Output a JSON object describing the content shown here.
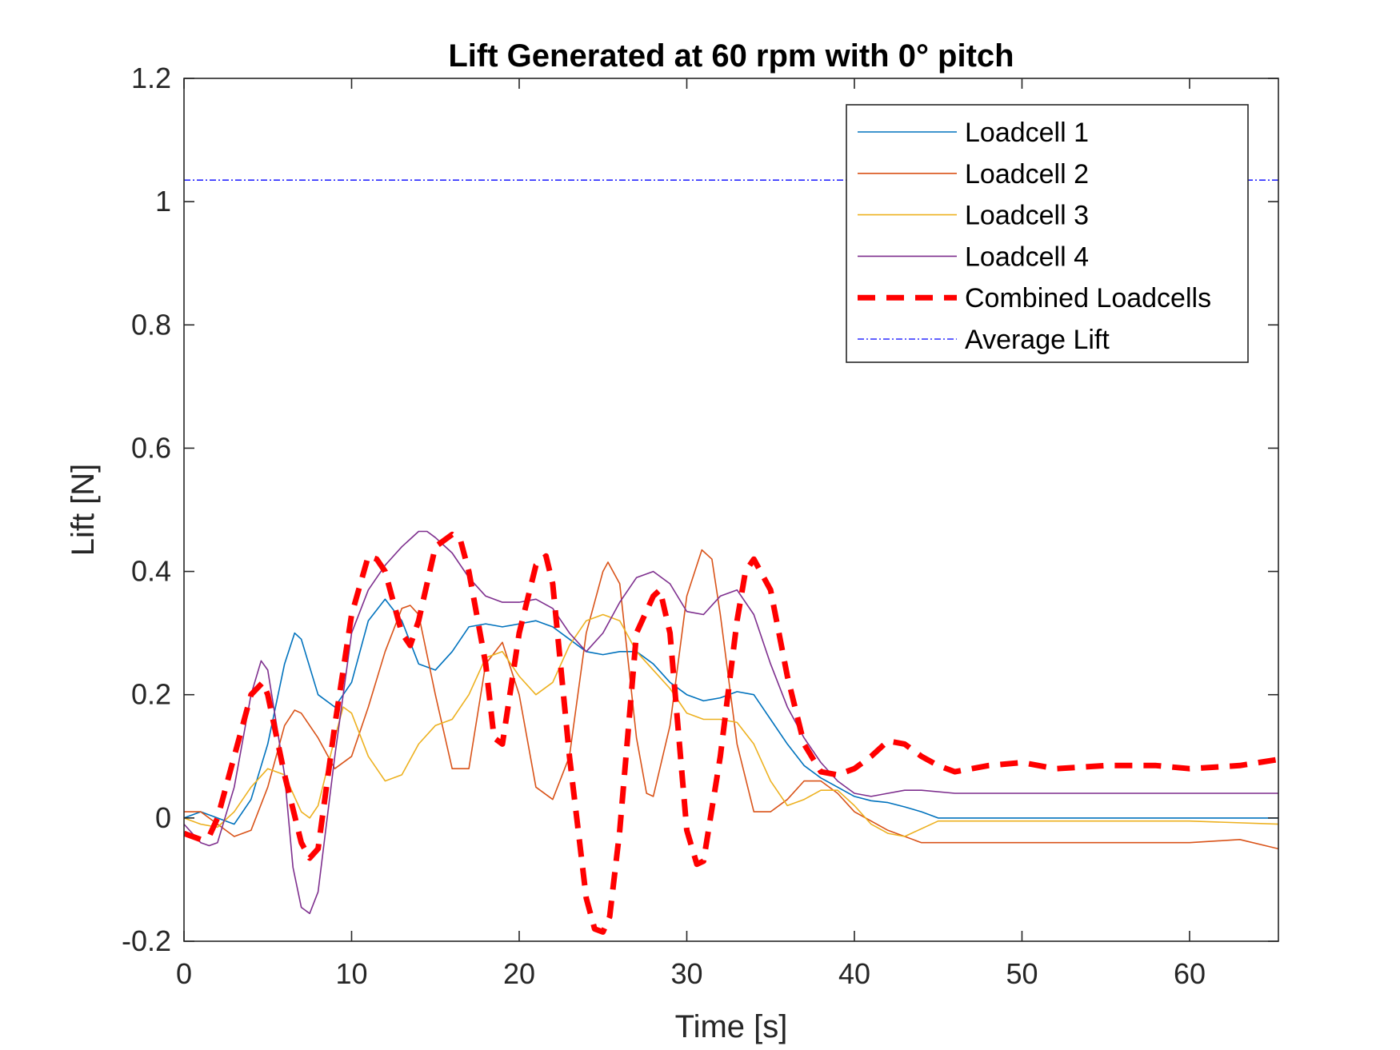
{
  "chart_data": {
    "type": "line",
    "title": "Lift Generated at 60 rpm with 0° pitch",
    "xlabel": "Time [s]",
    "ylabel": "Lift [N]",
    "xlim": [
      0,
      65.3
    ],
    "ylim": [
      -0.2,
      1.2
    ],
    "xticks": [
      0,
      10,
      20,
      30,
      40,
      50,
      60
    ],
    "xtick_labels": [
      "0",
      "10",
      "20",
      "30",
      "40",
      "50",
      "60"
    ],
    "yticks": [
      -0.2,
      0,
      0.2,
      0.4,
      0.6,
      0.8,
      1,
      1.2
    ],
    "ytick_labels": [
      "-0.2",
      "0",
      "0.2",
      "0.4",
      "0.6",
      "0.8",
      "1",
      "1.2"
    ],
    "grid": false,
    "legend_position": "top-right",
    "series": [
      {
        "name": "Loadcell 1",
        "color": "#0072BD",
        "style": "solid",
        "x": [
          0,
          1,
          2,
          3,
          4,
          5,
          6,
          6.6,
          7,
          8,
          9,
          10,
          11,
          12,
          13,
          14,
          15,
          16,
          17,
          18,
          19,
          20,
          21,
          22,
          23,
          24,
          25,
          26,
          27,
          28,
          29,
          30,
          31,
          32,
          33,
          34,
          35,
          36,
          37,
          38,
          39,
          40,
          41,
          42,
          43,
          44,
          45,
          47,
          50,
          55,
          60,
          65.3
        ],
        "y": [
          0.0,
          0.01,
          0.0,
          -0.01,
          0.03,
          0.12,
          0.25,
          0.3,
          0.29,
          0.2,
          0.18,
          0.22,
          0.32,
          0.355,
          0.32,
          0.25,
          0.24,
          0.27,
          0.31,
          0.315,
          0.31,
          0.315,
          0.32,
          0.31,
          0.29,
          0.27,
          0.265,
          0.27,
          0.27,
          0.25,
          0.22,
          0.2,
          0.19,
          0.195,
          0.205,
          0.2,
          0.16,
          0.12,
          0.085,
          0.065,
          0.05,
          0.035,
          0.028,
          0.025,
          0.018,
          0.01,
          0.0,
          0.0,
          0.0,
          0.0,
          0.0,
          0.0
        ]
      },
      {
        "name": "Loadcell 2",
        "color": "#D95319",
        "style": "solid",
        "x": [
          0,
          1,
          2,
          3,
          4,
          5,
          6,
          6.6,
          7,
          8,
          9,
          10,
          11,
          12,
          13,
          13.5,
          14,
          15,
          16,
          17,
          18,
          19,
          20,
          21,
          22,
          23,
          24,
          25,
          25.3,
          26,
          27,
          27.6,
          28,
          29,
          30,
          30.9,
          31.5,
          32,
          33,
          34,
          35,
          36,
          37,
          38,
          39,
          40,
          42,
          44,
          46,
          50,
          55,
          60,
          63,
          65.3
        ],
        "y": [
          0.01,
          0.01,
          -0.01,
          -0.03,
          -0.02,
          0.05,
          0.15,
          0.175,
          0.17,
          0.13,
          0.08,
          0.1,
          0.18,
          0.27,
          0.34,
          0.345,
          0.33,
          0.2,
          0.08,
          0.08,
          0.25,
          0.285,
          0.2,
          0.05,
          0.03,
          0.1,
          0.3,
          0.4,
          0.415,
          0.38,
          0.13,
          0.04,
          0.035,
          0.15,
          0.36,
          0.435,
          0.42,
          0.33,
          0.12,
          0.01,
          0.01,
          0.03,
          0.06,
          0.06,
          0.04,
          0.01,
          -0.02,
          -0.04,
          -0.04,
          -0.04,
          -0.04,
          -0.04,
          -0.035,
          -0.05
        ]
      },
      {
        "name": "Loadcell 3",
        "color": "#EDB120",
        "style": "solid",
        "x": [
          0,
          1,
          2,
          3,
          4,
          5,
          6,
          7,
          7.5,
          8,
          9,
          9.5,
          10,
          11,
          12,
          13,
          14,
          15,
          16,
          17,
          18,
          19,
          20,
          21,
          22,
          23,
          24,
          25,
          26,
          27,
          28,
          29,
          30,
          31,
          32,
          33,
          34,
          35,
          36,
          37,
          38,
          39,
          40,
          41,
          42,
          43,
          45,
          48,
          52,
          56,
          60,
          65.3
        ],
        "y": [
          0.0,
          -0.01,
          -0.015,
          0.01,
          0.05,
          0.08,
          0.07,
          0.01,
          0.0,
          0.02,
          0.13,
          0.18,
          0.17,
          0.1,
          0.06,
          0.07,
          0.12,
          0.15,
          0.16,
          0.2,
          0.26,
          0.27,
          0.23,
          0.2,
          0.22,
          0.28,
          0.32,
          0.33,
          0.32,
          0.27,
          0.24,
          0.21,
          0.17,
          0.16,
          0.16,
          0.155,
          0.12,
          0.06,
          0.02,
          0.03,
          0.045,
          0.045,
          0.02,
          -0.01,
          -0.025,
          -0.03,
          -0.005,
          -0.005,
          -0.005,
          -0.005,
          -0.005,
          -0.01
        ]
      },
      {
        "name": "Loadcell 4",
        "color": "#7E2F8E",
        "style": "solid",
        "x": [
          0,
          1,
          1.5,
          2,
          3,
          4,
          4.6,
          5,
          6,
          6.5,
          7,
          7.5,
          8,
          9,
          10,
          11,
          12,
          13,
          14,
          14.5,
          15,
          16,
          17,
          18,
          19,
          20,
          21,
          22,
          23,
          24,
          25,
          26,
          27,
          28,
          29,
          30,
          31,
          32,
          33,
          34,
          35,
          36,
          37,
          38,
          39,
          40,
          41,
          42,
          43,
          44,
          46,
          50,
          55,
          60,
          65.3
        ],
        "y": [
          -0.01,
          -0.04,
          -0.045,
          -0.04,
          0.05,
          0.2,
          0.255,
          0.24,
          0.07,
          -0.08,
          -0.145,
          -0.155,
          -0.12,
          0.1,
          0.3,
          0.37,
          0.41,
          0.44,
          0.465,
          0.465,
          0.455,
          0.43,
          0.39,
          0.36,
          0.35,
          0.35,
          0.355,
          0.34,
          0.3,
          0.27,
          0.3,
          0.35,
          0.39,
          0.4,
          0.38,
          0.335,
          0.33,
          0.36,
          0.37,
          0.33,
          0.25,
          0.18,
          0.13,
          0.09,
          0.06,
          0.04,
          0.035,
          0.04,
          0.045,
          0.045,
          0.04,
          0.04,
          0.04,
          0.04,
          0.04
        ]
      },
      {
        "name": "Combined Loadcells",
        "color": "#FF0000",
        "style": "dashed",
        "x": [
          0,
          1,
          1.5,
          2,
          3,
          4,
          4.7,
          5,
          6,
          7,
          7.5,
          8,
          9,
          10,
          11,
          11.5,
          12,
          13,
          13.5,
          14,
          15,
          16,
          16.5,
          17,
          18,
          18.5,
          19,
          20,
          21,
          21.6,
          22,
          23,
          24,
          24.5,
          25,
          25.4,
          26,
          27,
          28,
          28.4,
          29,
          30,
          30.6,
          31,
          32,
          33,
          33.5,
          34,
          35,
          36,
          37,
          38,
          39,
          40,
          41,
          42,
          43,
          44,
          45,
          46,
          48,
          50,
          52,
          55,
          58,
          60,
          63,
          65.3
        ],
        "y": [
          -0.025,
          -0.035,
          -0.03,
          0.0,
          0.1,
          0.2,
          0.22,
          0.2,
          0.07,
          -0.04,
          -0.065,
          -0.05,
          0.15,
          0.33,
          0.425,
          0.42,
          0.4,
          0.3,
          0.28,
          0.32,
          0.44,
          0.46,
          0.45,
          0.4,
          0.25,
          0.13,
          0.12,
          0.3,
          0.41,
          0.425,
          0.38,
          0.1,
          -0.13,
          -0.18,
          -0.185,
          -0.16,
          -0.02,
          0.3,
          0.36,
          0.37,
          0.3,
          -0.02,
          -0.075,
          -0.07,
          0.1,
          0.32,
          0.4,
          0.42,
          0.37,
          0.23,
          0.12,
          0.075,
          0.07,
          0.08,
          0.1,
          0.125,
          0.12,
          0.1,
          0.085,
          0.075,
          0.085,
          0.09,
          0.08,
          0.085,
          0.085,
          0.08,
          0.085,
          0.095
        ]
      },
      {
        "name": "Average Lift",
        "color": "#0000FF",
        "style": "dashdot",
        "x": [
          0,
          65.3
        ],
        "y": [
          1.035,
          1.035
        ]
      }
    ]
  }
}
